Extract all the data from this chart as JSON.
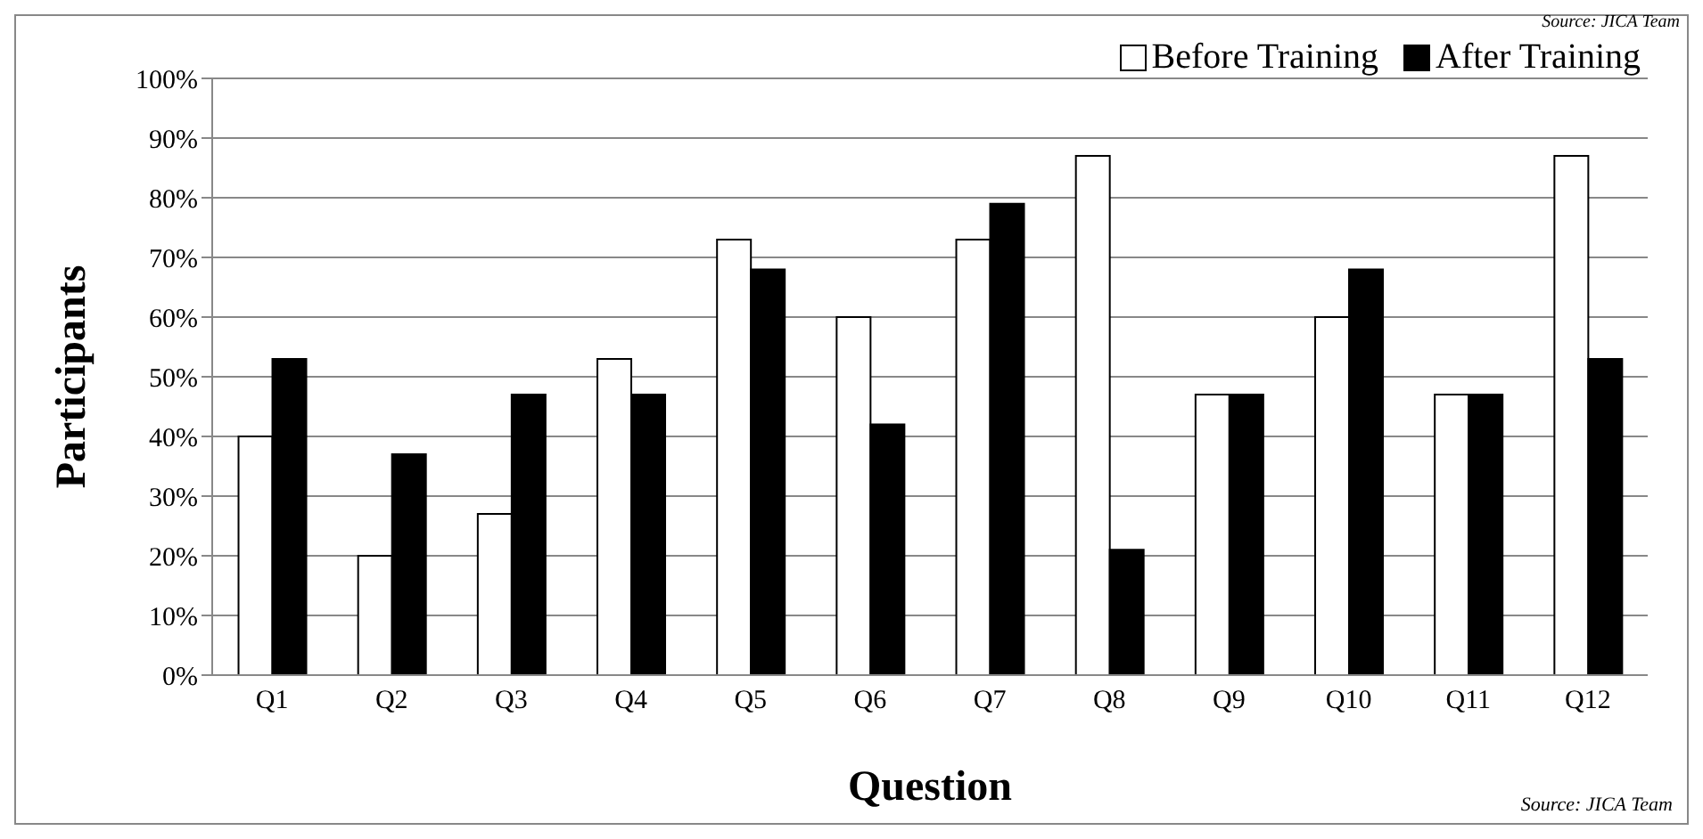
{
  "chart_data": {
    "type": "bar",
    "xlabel": "Question",
    "ylabel": "Participants",
    "categories": [
      "Q1",
      "Q2",
      "Q3",
      "Q4",
      "Q5",
      "Q6",
      "Q7",
      "Q8",
      "Q9",
      "Q10",
      "Q11",
      "Q12"
    ],
    "series": [
      {
        "name": "Before Training",
        "color": "#ffffff",
        "values": [
          40,
          20,
          27,
          53,
          73,
          60,
          73,
          87,
          47,
          60,
          47,
          87
        ]
      },
      {
        "name": "After Training",
        "color": "#000000",
        "values": [
          53,
          37,
          47,
          47,
          68,
          42,
          79,
          21,
          47,
          68,
          47,
          53
        ]
      }
    ],
    "ylim": [
      0,
      100
    ],
    "yticks": [
      {
        "value": 0,
        "label": "0%"
      },
      {
        "value": 10,
        "label": "10%"
      },
      {
        "value": 20,
        "label": "20%"
      },
      {
        "value": 30,
        "label": "30%"
      },
      {
        "value": 40,
        "label": "40%"
      },
      {
        "value": 50,
        "label": "50%"
      },
      {
        "value": 60,
        "label": "60%"
      },
      {
        "value": 70,
        "label": "70%"
      },
      {
        "value": 80,
        "label": "80%"
      },
      {
        "value": 90,
        "label": "90%"
      },
      {
        "value": 100,
        "label": "100%"
      }
    ],
    "grid": "y",
    "legend": "top right",
    "annotations": [
      "Source: JICA Team",
      "Source: JICA Team"
    ]
  }
}
